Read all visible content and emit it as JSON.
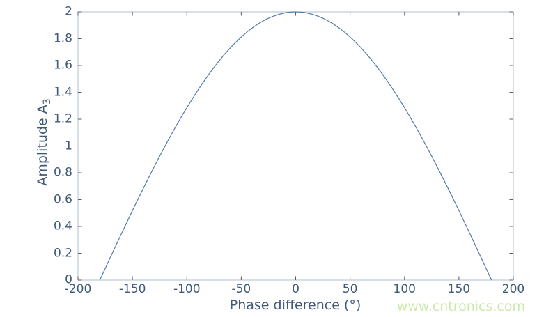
{
  "colors": {
    "background": "#ffffff",
    "text": "#415a78",
    "spine": "#b2c0cb",
    "tick": "#4a6076",
    "line": "#527aa8",
    "watermark": "#cde9ad"
  },
  "watermark": {
    "text": "www.cntronics.com"
  },
  "chart_data": {
    "type": "line",
    "title": "",
    "xlabel": "Phase difference (°)",
    "ylabel": "Amplitude A3",
    "ylabel_main": "Amplitude A",
    "ylabel_sub": "3",
    "xlim": [
      -200,
      200
    ],
    "ylim": [
      0,
      2
    ],
    "grid": false,
    "legend": null,
    "box": true,
    "ticks_direction": "in",
    "xticks": [
      -200,
      -150,
      -100,
      -50,
      0,
      50,
      100,
      150,
      200
    ],
    "xtick_labels": [
      "-200",
      "-150",
      "-100",
      "-50",
      "0",
      "50",
      "100",
      "150",
      "200"
    ],
    "yticks": [
      0,
      0.2,
      0.4,
      0.6,
      0.8,
      1,
      1.2,
      1.4,
      1.6,
      1.8,
      2
    ],
    "ytick_labels": [
      "0",
      "0.2",
      "0.4",
      "0.6",
      "0.8",
      "1",
      "1.2",
      "1.4",
      "1.6",
      "1.8",
      "2"
    ],
    "series": [
      {
        "name": "amplitude-vs-phase-difference",
        "x": [
          -180,
          -175,
          -170,
          -165,
          -160,
          -155,
          -150,
          -145,
          -140,
          -135,
          -130,
          -125,
          -120,
          -115,
          -110,
          -105,
          -100,
          -95,
          -90,
          -85,
          -80,
          -75,
          -70,
          -65,
          -60,
          -55,
          -50,
          -45,
          -40,
          -35,
          -30,
          -25,
          -20,
          -15,
          -10,
          -5,
          0,
          5,
          10,
          15,
          20,
          25,
          30,
          35,
          40,
          45,
          50,
          55,
          60,
          65,
          70,
          75,
          80,
          85,
          90,
          95,
          100,
          105,
          110,
          115,
          120,
          125,
          130,
          135,
          140,
          145,
          150,
          155,
          160,
          165,
          170,
          175,
          180
        ],
        "y": [
          0,
          0.0872,
          0.1743,
          0.2611,
          0.3473,
          0.4329,
          0.5176,
          0.6014,
          0.684,
          0.7654,
          0.8452,
          0.9235,
          1,
          1.0746,
          1.1472,
          1.2175,
          1.2856,
          1.3512,
          1.4142,
          1.4746,
          1.5321,
          1.5867,
          1.6383,
          1.6868,
          1.7321,
          1.774,
          1.8126,
          1.8478,
          1.8794,
          1.9074,
          1.9319,
          1.9526,
          1.9696,
          1.9829,
          1.9924,
          1.9981,
          2,
          1.9981,
          1.9924,
          1.9829,
          1.9696,
          1.9526,
          1.9319,
          1.9074,
          1.8794,
          1.8478,
          1.8126,
          1.774,
          1.7321,
          1.6868,
          1.6383,
          1.5867,
          1.5321,
          1.4746,
          1.4142,
          1.3512,
          1.2856,
          1.2175,
          1.1472,
          1.0746,
          1,
          0.9235,
          0.8452,
          0.7654,
          0.684,
          0.6014,
          0.5176,
          0.4329,
          0.3473,
          0.2611,
          0.1743,
          0.0872,
          0
        ]
      }
    ]
  }
}
